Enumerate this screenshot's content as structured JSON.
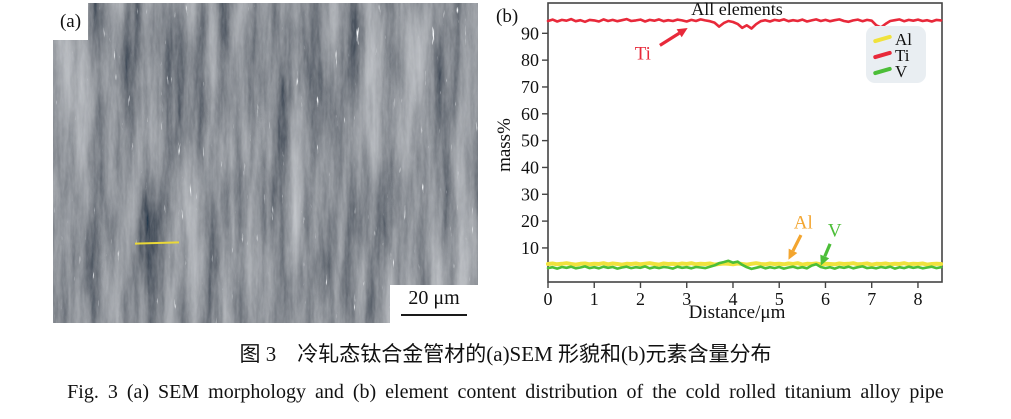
{
  "figure": {
    "panel_a": {
      "label": "(a)",
      "scale_bar_text": "20 μm"
    },
    "panel_b": {
      "label": "(b)"
    }
  },
  "chart_data": {
    "type": "line",
    "title": "All elements",
    "xlabel": "Distance/μm",
    "ylabel": "mass%",
    "xlim": [
      0,
      8.52
    ],
    "ylim": [
      -2.7,
      101.3
    ],
    "xticks": [
      0,
      1,
      2,
      3,
      4,
      5,
      6,
      7,
      8
    ],
    "yticks": [
      10,
      20,
      30,
      40,
      50,
      60,
      70,
      80,
      90
    ],
    "grid": false,
    "legend_position": "top-right",
    "legend_order": [
      "Al",
      "Ti",
      "V"
    ],
    "x_step": 0.1,
    "series": [
      {
        "name": "Al",
        "color": "#f0e23d",
        "width": 4,
        "values": [
          4.0,
          4.2,
          3.9,
          4.1,
          4.3,
          4.0,
          3.8,
          4.1,
          4.2,
          3.9,
          4.1,
          4.0,
          4.3,
          3.9,
          4.2,
          4.0,
          3.8,
          4.1,
          4.0,
          4.2,
          3.9,
          4.1,
          4.3,
          4.0,
          3.8,
          4.2,
          4.0,
          4.1,
          3.9,
          4.2,
          4.0,
          4.3,
          3.9,
          4.1,
          4.0,
          4.2,
          3.8,
          4.0,
          4.2,
          4.1,
          3.9,
          4.2,
          4.0,
          3.8,
          4.1,
          4.3,
          4.0,
          3.9,
          4.2,
          4.0,
          4.1,
          3.9,
          4.2,
          4.0,
          4.3,
          3.8,
          4.1,
          4.0,
          4.2,
          3.9,
          4.1,
          4.0,
          3.9,
          4.2,
          4.0,
          4.1,
          4.3,
          3.9,
          4.0,
          4.2,
          3.8,
          4.1,
          4.0,
          4.2,
          3.9,
          4.1,
          4.0,
          4.3,
          3.9,
          4.1,
          4.0,
          4.2,
          3.8,
          4.0,
          4.1,
          4.0
        ]
      },
      {
        "name": "V",
        "color": "#4cbe38",
        "width": 2.6,
        "values": [
          2.5,
          2.8,
          2.3,
          2.9,
          2.6,
          3.0,
          2.4,
          2.7,
          3.1,
          2.5,
          2.8,
          2.4,
          3.0,
          2.6,
          2.9,
          2.3,
          2.7,
          3.0,
          2.5,
          2.8,
          2.6,
          3.1,
          2.4,
          2.8,
          2.5,
          2.9,
          2.7,
          2.3,
          3.0,
          2.6,
          2.8,
          2.4,
          2.9,
          2.7,
          2.5,
          3.0,
          3.5,
          4.3,
          4.7,
          5.2,
          4.5,
          4.9,
          3.7,
          2.8,
          2.2,
          2.6,
          3.0,
          2.4,
          2.8,
          2.5,
          2.9,
          2.3,
          2.7,
          3.0,
          2.5,
          2.8,
          2.4,
          3.4,
          3.9,
          2.9,
          2.5,
          2.8,
          2.3,
          2.9,
          2.6,
          3.0,
          2.4,
          2.8,
          3.1,
          2.5,
          2.7,
          2.4,
          2.9,
          2.6,
          3.0,
          2.3,
          2.8,
          2.5,
          3.0,
          2.6,
          2.9,
          2.4,
          2.7,
          3.0,
          2.5,
          2.8
        ]
      },
      {
        "name": "Ti",
        "color": "#e8293a",
        "width": 2.6,
        "values": [
          94.6,
          95.1,
          94.4,
          95.0,
          94.7,
          95.3,
          94.5,
          94.9,
          94.3,
          95.0,
          94.8,
          94.4,
          95.2,
          94.6,
          95.0,
          94.5,
          94.9,
          95.3,
          94.6,
          94.8,
          95.1,
          94.4,
          95.0,
          94.7,
          95.2,
          94.5,
          94.9,
          94.6,
          95.1,
          94.8,
          94.4,
          95.0,
          94.6,
          95.2,
          94.8,
          94.5,
          94.0,
          92.5,
          93.8,
          94.6,
          94.2,
          93.5,
          92.0,
          93.0,
          91.8,
          93.4,
          94.5,
          94.9,
          94.4,
          95.0,
          94.7,
          95.2,
          94.5,
          94.9,
          94.6,
          95.1,
          94.4,
          94.8,
          95.2,
          94.6,
          95.0,
          94.5,
          94.9,
          95.2,
          94.6,
          94.3,
          94.8,
          95.1,
          94.5,
          95.0,
          94.7,
          93.0,
          92.2,
          93.5,
          94.6,
          94.9,
          95.2,
          94.5,
          95.0,
          94.7,
          95.1,
          94.6,
          94.9,
          94.4,
          95.0,
          94.8
        ]
      }
    ],
    "annotations": [
      {
        "text": "Ti",
        "color": "#e8293a",
        "tx": 2.05,
        "ty": 82.5,
        "ax": 2.42,
        "ay": 85.5,
        "bx": 3.02,
        "by": 92.0
      },
      {
        "text": "Al",
        "color": "#f3a52f",
        "tx": 5.52,
        "ty": 19.5,
        "ax": 5.47,
        "ay": 14.8,
        "bx": 5.2,
        "by": 5.6
      },
      {
        "text": "V",
        "color": "#4cbe38",
        "tx": 6.2,
        "ty": 16.5,
        "ax": 6.1,
        "ay": 11.5,
        "bx": 5.9,
        "by": 3.4
      }
    ]
  },
  "captions": {
    "chinese": "图 3　冷轧态钛合金管材的(a)SEM 形貌和(b)元素含量分布",
    "english": "Fig. 3  (a) SEM morphology and (b) element content distribution of the cold rolled titanium alloy pipe"
  }
}
